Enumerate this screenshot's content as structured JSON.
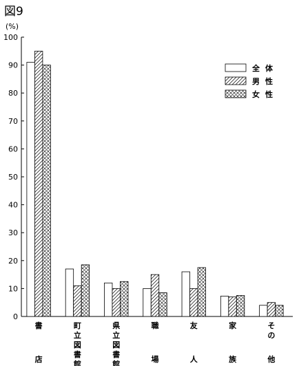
{
  "figure_label": "図9",
  "chart_data": {
    "type": "bar",
    "ylabel": "(%)",
    "ylim": [
      0,
      100
    ],
    "yticks": [
      0,
      10,
      20,
      30,
      40,
      50,
      60,
      70,
      80,
      90,
      100
    ],
    "grid": false,
    "legend_position": "top-right",
    "categories": [
      "書店",
      "町立図書館",
      "県立図書館",
      "職場",
      "友人",
      "家族",
      "その他"
    ],
    "category_labels": [
      {
        "top": [
          "書"
        ],
        "bottom": "店"
      },
      {
        "top": [
          "町",
          "立",
          "図",
          "書",
          "館"
        ],
        "bottom": ""
      },
      {
        "top": [
          "県",
          "立",
          "図",
          "書",
          "館"
        ],
        "bottom": ""
      },
      {
        "top": [
          "職"
        ],
        "bottom": "場"
      },
      {
        "top": [
          "友"
        ],
        "bottom": "人"
      },
      {
        "top": [
          "家"
        ],
        "bottom": "族"
      },
      {
        "top": [
          "そ",
          "の"
        ],
        "bottom": "他"
      }
    ],
    "series": [
      {
        "name": "全体",
        "pattern": "plain",
        "values": [
          91,
          17,
          12,
          10,
          16,
          7.3,
          4
        ]
      },
      {
        "name": "男性",
        "pattern": "diagonal",
        "values": [
          95,
          11,
          10,
          15,
          10,
          7,
          5
        ]
      },
      {
        "name": "女性",
        "pattern": "crosshatch",
        "values": [
          90,
          18.5,
          12.5,
          8.5,
          17.5,
          7.5,
          4
        ]
      }
    ]
  }
}
